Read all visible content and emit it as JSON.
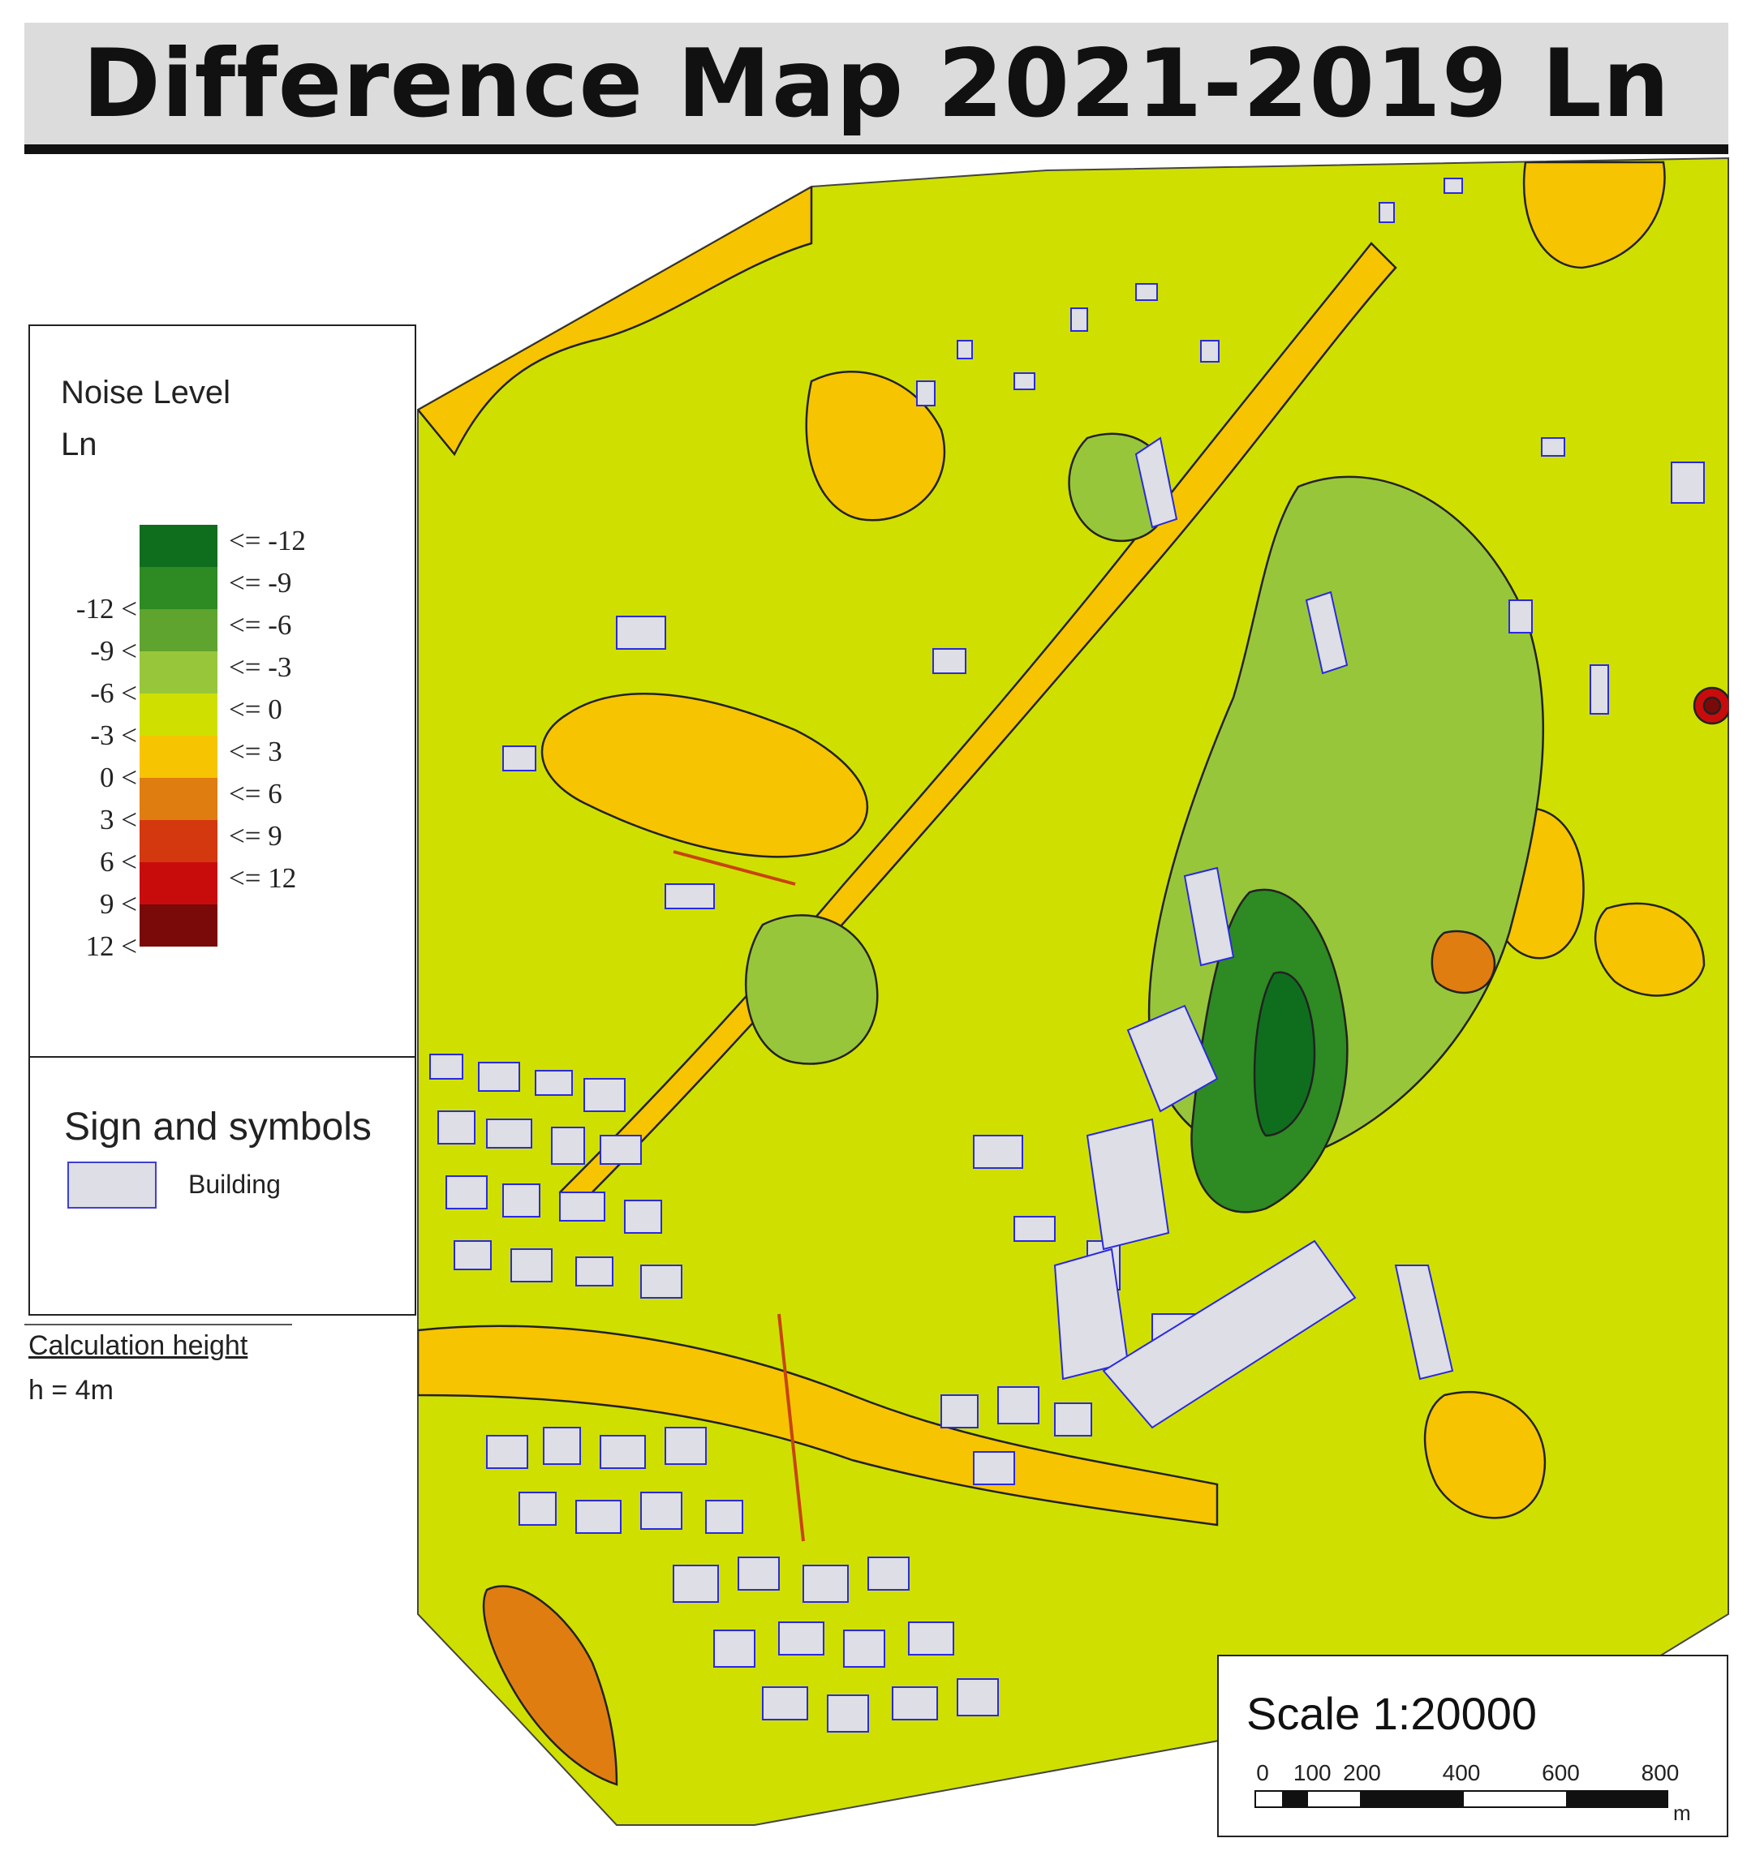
{
  "title": "Difference Map 2021-2019 Ln",
  "legend": {
    "title_line1": "Noise Level",
    "title_line2": "Ln",
    "classes": [
      {
        "left": "",
        "right": "<= -12",
        "color": "#0f6e1e"
      },
      {
        "left": "-12 <",
        "right": "<=  -9",
        "color": "#2e8a22"
      },
      {
        "left": "-9 <",
        "right": "<=  -6",
        "color": "#5fa42e"
      },
      {
        "left": "-6 <",
        "right": "<=  -3",
        "color": "#98c63a"
      },
      {
        "left": "-3 <",
        "right": "<=   0",
        "color": "#cfe000"
      },
      {
        "left": "0 <",
        "right": "<=   3",
        "color": "#f6c400"
      },
      {
        "left": "3 <",
        "right": "<=   6",
        "color": "#e07d10"
      },
      {
        "left": "6 <",
        "right": "<=   9",
        "color": "#d4380e"
      },
      {
        "left": "9 <",
        "right": "<= 12",
        "color": "#c80c0c"
      },
      {
        "left": "12 <",
        "right": "",
        "color": "#7a0a0a"
      }
    ]
  },
  "signs": {
    "title": "Sign and symbols",
    "building_label": "Building",
    "building_fill": "#dedee6",
    "building_outline": "#4040d0"
  },
  "calculation": {
    "heading": "Calculation height",
    "value": "h = 4m"
  },
  "scale": {
    "title": "Scale 1:20000",
    "ticks": [
      "0",
      "100",
      "200",
      "400",
      "600",
      "800"
    ],
    "unit": "m"
  },
  "map_colors": {
    "base": "#cfe000",
    "positive_band": "#f6c400",
    "green_zone": "#98c63a",
    "dark_green": "#2e8a22",
    "orange": "#e07d10",
    "building": "#dedee6",
    "building_outline": "#2a2ae0"
  }
}
